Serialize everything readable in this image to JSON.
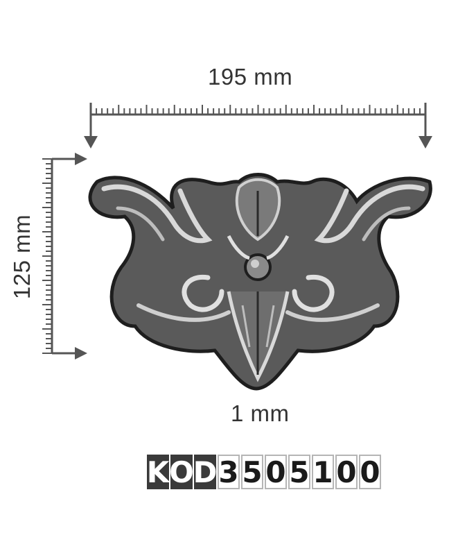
{
  "dimensions": {
    "width_label": "195 mm",
    "height_label": "125 mm",
    "thickness_label": "1 mm"
  },
  "product_code": {
    "prefix": [
      "K",
      "O",
      "D"
    ],
    "digits": [
      "3",
      "5",
      "0",
      "5",
      "1",
      "0",
      "0"
    ]
  },
  "ornament": {
    "color": "#5a5a5a",
    "highlight": "#d9d9d9",
    "outline": "#1e1e1e"
  },
  "ruler_color": "#555555"
}
